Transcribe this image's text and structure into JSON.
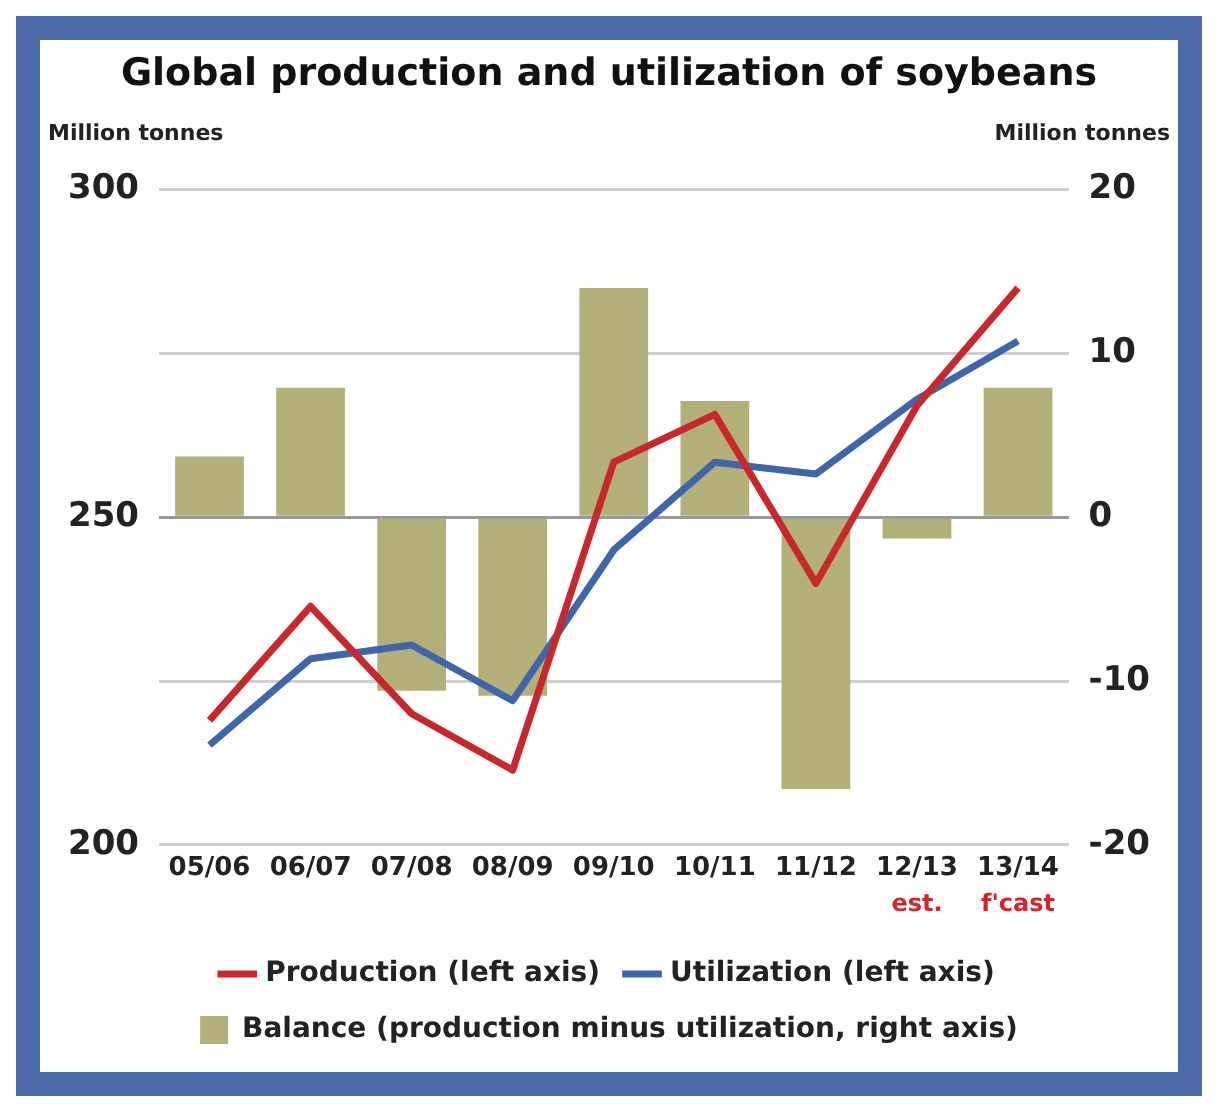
{
  "chart_data": {
    "type": "line",
    "title": "Global production and utilization of soybeans",
    "ylabel": "Million tonnes",
    "y2label": "Million tonnes",
    "categories": [
      "05/06",
      "06/07",
      "07/08",
      "08/09",
      "09/10",
      "10/11",
      "11/12",
      "12/13",
      "13/14"
    ],
    "series": [
      {
        "name": "Production (left axis)",
        "color": "#c8282d",
        "values": [
          219,
          236.4,
          220,
          211.4,
          258.4,
          265.7,
          239.9,
          267,
          285
        ]
      },
      {
        "name": "Utilization (left axis)",
        "color": "#3f66a8",
        "values": [
          215.2,
          228.4,
          230.5,
          222,
          245,
          258.4,
          256.6,
          268,
          276.9
        ]
      },
      {
        "name": "Balance (production minus utilization, right axis)",
        "type": "bar",
        "axis": "y2",
        "color": "#b3b07a",
        "values": [
          3.7,
          7.9,
          -10.6,
          -10.9,
          14,
          7.1,
          -16.6,
          -1.3,
          7.9
        ]
      }
    ],
    "ylim": [
      200,
      300
    ],
    "yticks": [
      200,
      250,
      300
    ],
    "y2lim": [
      -20,
      20
    ],
    "y2ticks": [
      -20,
      -10,
      0,
      10,
      20
    ],
    "grid": "y2",
    "legend": "bottom",
    "marker": "none",
    "line_style": "solid",
    "annotations": [
      "est.",
      "f'cast"
    ]
  }
}
